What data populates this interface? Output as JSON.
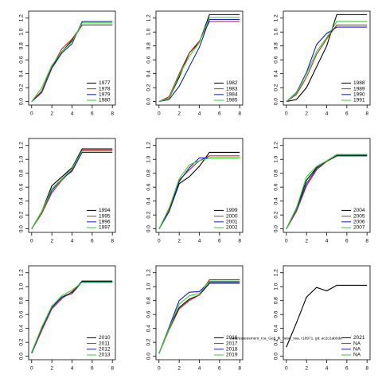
{
  "chart_data": [
    {
      "type": "line",
      "x": [
        0,
        1,
        2,
        3,
        4,
        5,
        6,
        7,
        8
      ],
      "xlim": [
        -0.3,
        8.3
      ],
      "xticks": [
        0,
        2,
        4,
        6,
        8
      ],
      "ylim": [
        -0.05,
        1.3
      ],
      "yticks": [
        {
          "value": 0,
          "label": "0.0"
        },
        0.2,
        0.4,
        0.6,
        0.8,
        {
          "value": 1,
          "label": "1.0"
        },
        1.2
      ],
      "legend": "bottomright",
      "series": [
        {
          "name": "1977",
          "color": "#000000",
          "values": [
            0,
            0.15,
            0.5,
            0.72,
            0.88,
            1.1,
            1.1,
            1.1,
            1.1
          ]
        },
        {
          "name": "1978",
          "color": "#d62020",
          "values": [
            0,
            0.15,
            0.5,
            0.76,
            0.9,
            1.1,
            1.1,
            1.1,
            1.1
          ]
        },
        {
          "name": "1979",
          "color": "#1a1ad6",
          "values": [
            0,
            0.13,
            0.48,
            0.7,
            0.83,
            1.15,
            1.15,
            1.15,
            1.15
          ]
        },
        {
          "name": "1980",
          "color": "#22dd22",
          "values": [
            0,
            0.2,
            0.52,
            0.72,
            0.86,
            1.13,
            1.13,
            1.13,
            1.13
          ]
        }
      ]
    },
    {
      "type": "line",
      "x": [
        0,
        1,
        2,
        3,
        4,
        5,
        6,
        7,
        8
      ],
      "xlim": [
        -0.3,
        8.3
      ],
      "xticks": [
        0,
        2,
        4,
        6,
        8
      ],
      "ylim": [
        -0.05,
        1.3
      ],
      "yticks": [
        {
          "value": 0,
          "label": "0.0"
        },
        0.2,
        0.4,
        0.6,
        0.8,
        {
          "value": 1,
          "label": "1.0"
        },
        1.2
      ],
      "legend": "bottomright",
      "series": [
        {
          "name": "1982",
          "color": "#000000",
          "values": [
            0,
            0.05,
            0.35,
            0.7,
            0.85,
            1.25,
            1.25,
            1.25,
            1.25
          ]
        },
        {
          "name": "1983",
          "color": "#d62020",
          "values": [
            0,
            0.07,
            0.4,
            0.7,
            0.87,
            1.15,
            1.15,
            1.15,
            1.15
          ]
        },
        {
          "name": "1984",
          "color": "#1a1ad6",
          "values": [
            0,
            0.03,
            0.22,
            0.5,
            0.78,
            1.18,
            1.18,
            1.18,
            1.18
          ]
        },
        {
          "name": "1985",
          "color": "#22dd22",
          "values": [
            0,
            0.05,
            0.38,
            0.65,
            0.85,
            1.21,
            1.21,
            1.21,
            1.21
          ]
        }
      ]
    },
    {
      "type": "line",
      "x": [
        0,
        1,
        2,
        3,
        4,
        5,
        6,
        7,
        8
      ],
      "xlim": [
        -0.3,
        8.3
      ],
      "xticks": [
        0,
        2,
        4,
        6,
        8
      ],
      "ylim": [
        -0.05,
        1.3
      ],
      "yticks": [
        {
          "value": 0,
          "label": "0.0"
        },
        0.2,
        0.4,
        0.6,
        0.8,
        {
          "value": 1,
          "label": "1.0"
        },
        1.2
      ],
      "legend": "bottomright",
      "series": [
        {
          "name": "1988",
          "color": "#000000",
          "values": [
            0,
            0.03,
            0.2,
            0.5,
            0.8,
            1.25,
            1.25,
            1.25,
            1.25
          ]
        },
        {
          "name": "1989",
          "color": "#d62020",
          "values": [
            0,
            0.1,
            0.35,
            0.68,
            0.9,
            1.1,
            1.1,
            1.1,
            1.1
          ]
        },
        {
          "name": "1990",
          "color": "#1a1ad6",
          "values": [
            0,
            0.13,
            0.42,
            0.82,
            0.98,
            1.07,
            1.07,
            1.07,
            1.07
          ]
        },
        {
          "name": "1991",
          "color": "#22dd22",
          "values": [
            0,
            0.12,
            0.4,
            0.72,
            0.92,
            1.15,
            1.15,
            1.15,
            1.15
          ]
        }
      ]
    },
    {
      "type": "line",
      "x": [
        0,
        1,
        2,
        3,
        4,
        5,
        6,
        7,
        8
      ],
      "xlim": [
        -0.3,
        8.3
      ],
      "xticks": [
        0,
        2,
        4,
        6,
        8
      ],
      "ylim": [
        -0.05,
        1.3
      ],
      "yticks": [
        {
          "value": 0,
          "label": "0.0"
        },
        0.2,
        0.4,
        0.6,
        0.8,
        {
          "value": 1,
          "label": "1.0"
        },
        1.2
      ],
      "legend": "bottomright",
      "series": [
        {
          "name": "1994",
          "color": "#000000",
          "values": [
            0,
            0.25,
            0.62,
            0.75,
            0.88,
            1.15,
            1.15,
            1.15,
            1.15
          ]
        },
        {
          "name": "1995",
          "color": "#d62020",
          "values": [
            0,
            0.22,
            0.52,
            0.7,
            0.85,
            1.13,
            1.13,
            1.13,
            1.13
          ]
        },
        {
          "name": "1996",
          "color": "#1a1ad6",
          "values": [
            0,
            0.25,
            0.55,
            0.72,
            0.83,
            1.1,
            1.1,
            1.1,
            1.1
          ]
        },
        {
          "name": "1997",
          "color": "#22dd22",
          "values": [
            0,
            0.25,
            0.58,
            0.72,
            0.87,
            1.12,
            1.12,
            1.12,
            1.12
          ]
        }
      ]
    },
    {
      "type": "line",
      "x": [
        0,
        1,
        2,
        3,
        4,
        5,
        6,
        7,
        8
      ],
      "xlim": [
        -0.3,
        8.3
      ],
      "xticks": [
        0,
        2,
        4,
        6,
        8
      ],
      "ylim": [
        -0.05,
        1.3
      ],
      "yticks": [
        {
          "value": 0,
          "label": "0.0"
        },
        0.2,
        0.4,
        0.6,
        0.8,
        {
          "value": 1,
          "label": "1.0"
        },
        1.2
      ],
      "legend": "bottomright",
      "series": [
        {
          "name": "1999",
          "color": "#000000",
          "values": [
            0,
            0.25,
            0.65,
            0.75,
            0.9,
            1.1,
            1.1,
            1.1,
            1.1
          ]
        },
        {
          "name": "2000",
          "color": "#d62020",
          "values": [
            0,
            0.28,
            0.7,
            0.85,
            0.98,
            1.05,
            1.05,
            1.05,
            1.05
          ]
        },
        {
          "name": "2001",
          "color": "#1a1ad6",
          "values": [
            0,
            0.25,
            0.68,
            0.88,
            1.02,
            1.02,
            1.02,
            1.02,
            1.02
          ]
        },
        {
          "name": "2002",
          "color": "#22dd22",
          "values": [
            0,
            0.3,
            0.72,
            0.92,
            0.98,
            1.02,
            1.02,
            1.02,
            1.02
          ]
        }
      ]
    },
    {
      "type": "line",
      "x": [
        0,
        1,
        2,
        3,
        4,
        5,
        6,
        7,
        8
      ],
      "xlim": [
        -0.3,
        8.3
      ],
      "xticks": [
        0,
        2,
        4,
        6,
        8
      ],
      "ylim": [
        -0.05,
        1.3
      ],
      "yticks": [
        {
          "value": 0,
          "label": "0.0"
        },
        0.2,
        0.4,
        0.6,
        0.8,
        {
          "value": 1,
          "label": "1.0"
        },
        1.2
      ],
      "legend": "bottomright",
      "series": [
        {
          "name": "2004",
          "color": "#000000",
          "values": [
            0,
            0.3,
            0.7,
            0.88,
            0.97,
            1.05,
            1.05,
            1.05,
            1.05
          ]
        },
        {
          "name": "2005",
          "color": "#d62020",
          "values": [
            0,
            0.25,
            0.62,
            0.85,
            0.97,
            1.06,
            1.06,
            1.06,
            1.06
          ]
        },
        {
          "name": "2006",
          "color": "#1a1ad6",
          "values": [
            0,
            0.28,
            0.65,
            0.87,
            0.98,
            1.06,
            1.06,
            1.06,
            1.06
          ]
        },
        {
          "name": "2007",
          "color": "#22dd22",
          "values": [
            0,
            0.3,
            0.75,
            0.9,
            0.98,
            1.07,
            1.07,
            1.07,
            1.07
          ]
        }
      ]
    },
    {
      "type": "line",
      "x": [
        0,
        1,
        2,
        3,
        4,
        5,
        6,
        7,
        8
      ],
      "xlim": [
        -0.3,
        8.3
      ],
      "xticks": [
        0,
        2,
        4,
        6,
        8
      ],
      "ylim": [
        -0.05,
        1.3
      ],
      "yticks": [
        {
          "value": 0,
          "label": "0.0"
        },
        0.2,
        0.4,
        0.6,
        0.8,
        {
          "value": 1,
          "label": "1.0"
        },
        1.2
      ],
      "legend": "bottomright",
      "series": [
        {
          "name": "2010",
          "color": "#000000",
          "values": [
            0.05,
            0.4,
            0.72,
            0.85,
            0.92,
            1.08,
            1.08,
            1.08,
            1.08
          ]
        },
        {
          "name": "2011",
          "color": "#d62020",
          "values": [
            0.04,
            0.37,
            0.68,
            0.83,
            0.93,
            1.07,
            1.07,
            1.07,
            1.07
          ]
        },
        {
          "name": "2012",
          "color": "#1a1ad6",
          "values": [
            0.05,
            0.4,
            0.7,
            0.85,
            0.9,
            1.07,
            1.07,
            1.07,
            1.07
          ]
        },
        {
          "name": "2013",
          "color": "#22dd22",
          "values": [
            0.06,
            0.42,
            0.72,
            0.87,
            0.95,
            1.06,
            1.06,
            1.06,
            1.06
          ]
        }
      ]
    },
    {
      "type": "line",
      "x": [
        0,
        1,
        2,
        3,
        4,
        5,
        6,
        7,
        8
      ],
      "xlim": [
        -0.3,
        8.3
      ],
      "xticks": [
        0,
        2,
        4,
        6,
        8
      ],
      "ylim": [
        -0.05,
        1.3
      ],
      "yticks": [
        {
          "value": 0,
          "label": "0.0"
        },
        0.2,
        0.4,
        0.6,
        0.8,
        {
          "value": 1,
          "label": "1.0"
        },
        1.2
      ],
      "legend": "bottomright",
      "annotation": "data/assessment_rca_Gelt_fit_base_xsa, r16971, git: ac2c2ab0de",
      "series": [
        {
          "name": "2016",
          "color": "#000000",
          "values": [
            0.04,
            0.4,
            0.7,
            0.82,
            0.88,
            1.05,
            1.05,
            1.05,
            1.05
          ]
        },
        {
          "name": "2017",
          "color": "#d62020",
          "values": [
            0.04,
            0.38,
            0.68,
            0.8,
            0.88,
            1.1,
            1.1,
            1.1,
            1.1
          ]
        },
        {
          "name": "2018",
          "color": "#1a1ad6",
          "values": [
            0.04,
            0.42,
            0.8,
            0.92,
            0.93,
            1.07,
            1.07,
            1.07,
            1.07
          ]
        },
        {
          "name": "2019",
          "color": "#22dd22",
          "values": [
            0.04,
            0.4,
            0.75,
            0.87,
            0.9,
            1.08,
            1.08,
            1.08,
            1.08
          ]
        }
      ]
    },
    {
      "type": "line",
      "x": [
        0,
        1,
        2,
        3,
        4,
        5,
        6,
        7,
        8
      ],
      "xlim": [
        -0.3,
        8.3
      ],
      "xticks": [
        0,
        2,
        4,
        6,
        8
      ],
      "ylim": [
        -0.05,
        1.3
      ],
      "yticks": [
        {
          "value": 0,
          "label": "0.0"
        },
        0.2,
        0.4,
        0.6,
        0.8,
        {
          "value": 1,
          "label": "1.0"
        },
        1.2
      ],
      "legend": "bottomright",
      "series": [
        {
          "name": "2021",
          "color": "#000000",
          "values": [
            0.13,
            0.48,
            0.85,
            0.99,
            0.94,
            1.02,
            1.02,
            1.02,
            1.02
          ]
        },
        {
          "name": "NA",
          "color": "#d62020",
          "values": [
            null,
            null,
            null,
            null,
            null,
            null,
            null,
            null,
            null
          ]
        },
        {
          "name": "NA",
          "color": "#1a1ad6",
          "values": [
            null,
            null,
            null,
            null,
            null,
            null,
            null,
            null,
            null
          ]
        },
        {
          "name": "NA",
          "color": "#22dd22",
          "values": [
            null,
            null,
            null,
            null,
            null,
            null,
            null,
            null,
            null
          ]
        }
      ]
    }
  ]
}
